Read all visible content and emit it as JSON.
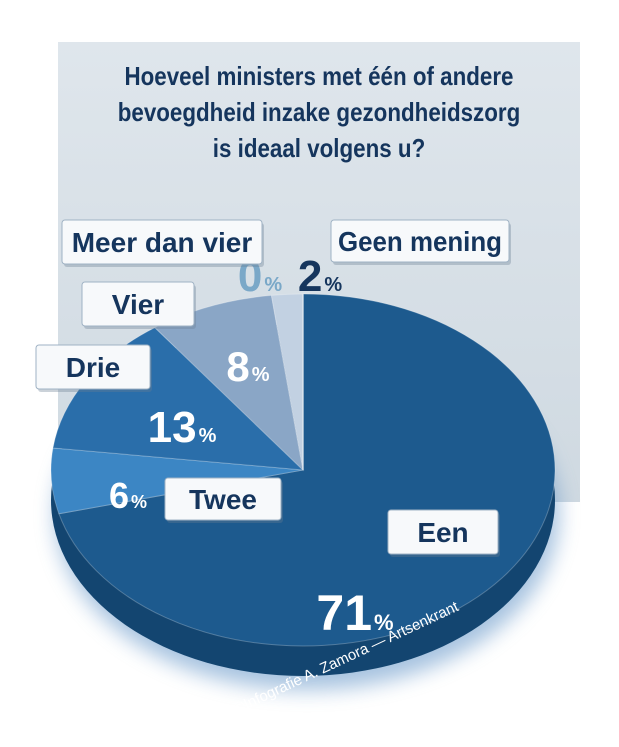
{
  "title_lines": [
    "Hoeveel ministers met één of andere",
    "bevoegdheid inzake gezondheidszorg",
    "is ideaal volgens u?"
  ],
  "credit": "©Infografie A. Zamora — Artsenkrant",
  "colors": {
    "een": "#1d5a8e",
    "twee": "#3c86c4",
    "drie": "#2a6eaa",
    "vier": "#8aa6c6",
    "geen_mening": "#c2d1e2",
    "dark_text": "#15355d",
    "zero_text": "#7aa8c8"
  },
  "chart_data": {
    "type": "pie",
    "title": "Hoeveel ministers met één of andere bevoegdheid inzake gezondheidszorg is ideaal volgens u?",
    "unit": "%",
    "slices": [
      {
        "label": "Een",
        "value": 71
      },
      {
        "label": "Twee",
        "value": 6
      },
      {
        "label": "Drie",
        "value": 13
      },
      {
        "label": "Vier",
        "value": 8
      },
      {
        "label": "Meer dan vier",
        "value": 0
      },
      {
        "label": "Geen mening",
        "value": 2
      }
    ]
  }
}
